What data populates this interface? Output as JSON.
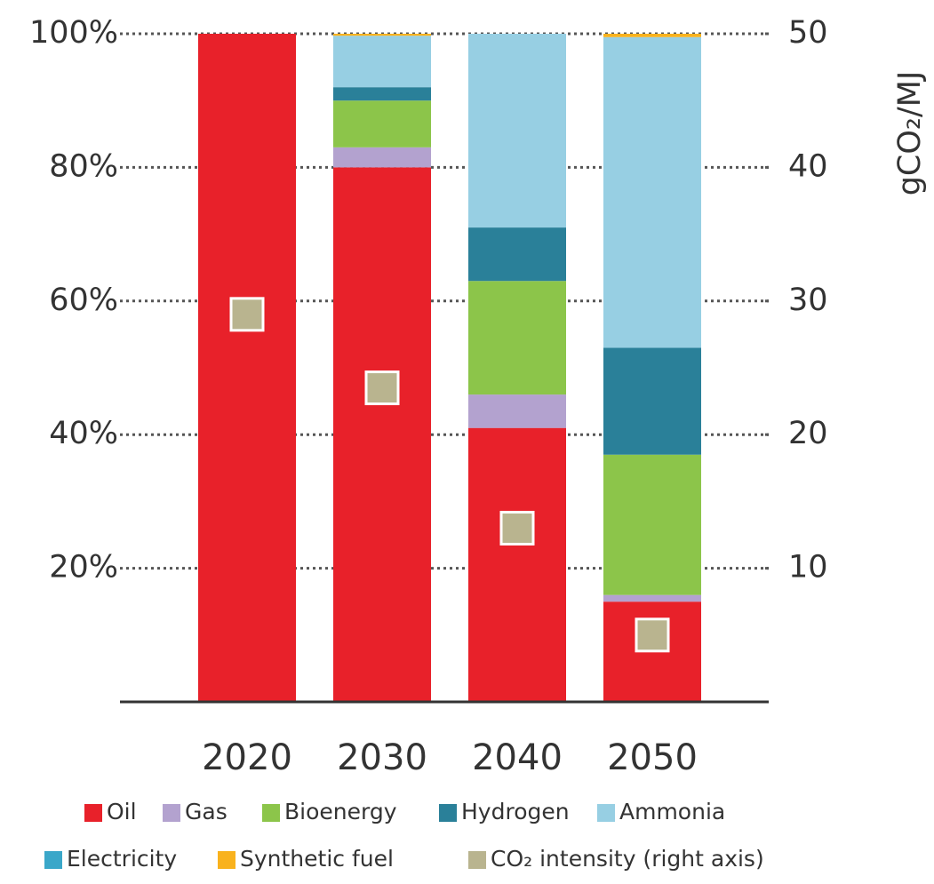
{
  "chart_data": {
    "type": "bar",
    "stacked": true,
    "categories": [
      "2020",
      "2030",
      "2040",
      "2050"
    ],
    "series": [
      {
        "name": "Oil",
        "color": "#e8212a",
        "values": [
          100,
          80,
          41,
          15
        ]
      },
      {
        "name": "Gas",
        "color": "#b3a2cf",
        "values": [
          0,
          3,
          5,
          1
        ]
      },
      {
        "name": "Bioenergy",
        "color": "#8cc54a",
        "values": [
          0,
          7,
          17,
          21
        ]
      },
      {
        "name": "Hydrogen",
        "color": "#2a8099",
        "values": [
          0,
          2,
          8,
          16
        ]
      },
      {
        "name": "Ammonia",
        "color": "#97cfe3",
        "values": [
          0,
          7.7,
          29,
          46.5
        ]
      },
      {
        "name": "Electricity",
        "color": "#3aa7c9",
        "values": [
          0,
          0,
          0,
          0
        ]
      },
      {
        "name": "Synthetic fuel",
        "color": "#f9b21d",
        "values": [
          0,
          0.3,
          0,
          0.5
        ]
      },
      {
        "name": "CO₂ intensity (right axis)",
        "color": "#b9b48f",
        "type": "scatter",
        "axis": "y2",
        "values": [
          29,
          23.5,
          13,
          5
        ]
      }
    ],
    "y2_label": "gCO₂/MJ",
    "ylim": [
      0,
      100
    ],
    "yticks": [
      {
        "value": 20,
        "label": "20%"
      },
      {
        "value": 40,
        "label": "40%"
      },
      {
        "value": 60,
        "label": "60%"
      },
      {
        "value": 80,
        "label": "80%"
      },
      {
        "value": 100,
        "label": "100%"
      }
    ],
    "y2lim": [
      0,
      50
    ],
    "y2ticks": [
      10,
      20,
      30,
      40,
      50
    ],
    "grid": true,
    "legend": "bottom"
  }
}
